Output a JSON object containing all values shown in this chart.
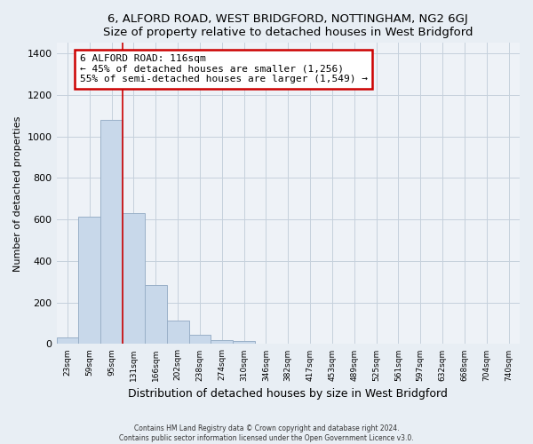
{
  "title": "6, ALFORD ROAD, WEST BRIDGFORD, NOTTINGHAM, NG2 6GJ",
  "subtitle": "Size of property relative to detached houses in West Bridgford",
  "xlabel": "Distribution of detached houses by size in West Bridgford",
  "ylabel": "Number of detached properties",
  "bar_labels": [
    "23sqm",
    "59sqm",
    "95sqm",
    "131sqm",
    "166sqm",
    "202sqm",
    "238sqm",
    "274sqm",
    "310sqm",
    "346sqm",
    "382sqm",
    "417sqm",
    "453sqm",
    "489sqm",
    "525sqm",
    "561sqm",
    "597sqm",
    "632sqm",
    "668sqm",
    "704sqm",
    "740sqm"
  ],
  "bar_heights": [
    30,
    615,
    1080,
    630,
    285,
    115,
    45,
    20,
    15,
    0,
    0,
    0,
    0,
    0,
    0,
    0,
    0,
    0,
    0,
    0,
    0
  ],
  "bar_color": "#c8d8ea",
  "bar_edge_color": "#9ab0c8",
  "vline_color": "#cc0000",
  "vline_x_index": 2.5,
  "annotation_title": "6 ALFORD ROAD: 116sqm",
  "annotation_line1": "← 45% of detached houses are smaller (1,256)",
  "annotation_line2": "55% of semi-detached houses are larger (1,549) →",
  "annotation_box_facecolor": "#ffffff",
  "annotation_box_edgecolor": "#cc0000",
  "ylim": [
    0,
    1450
  ],
  "yticks": [
    0,
    200,
    400,
    600,
    800,
    1000,
    1200,
    1400
  ],
  "footer1": "Contains HM Land Registry data © Crown copyright and database right 2024.",
  "footer2": "Contains public sector information licensed under the Open Government Licence v3.0.",
  "bg_color": "#e8eef4",
  "plot_bg_color": "#eef2f7",
  "grid_color": "#c5d0dc"
}
